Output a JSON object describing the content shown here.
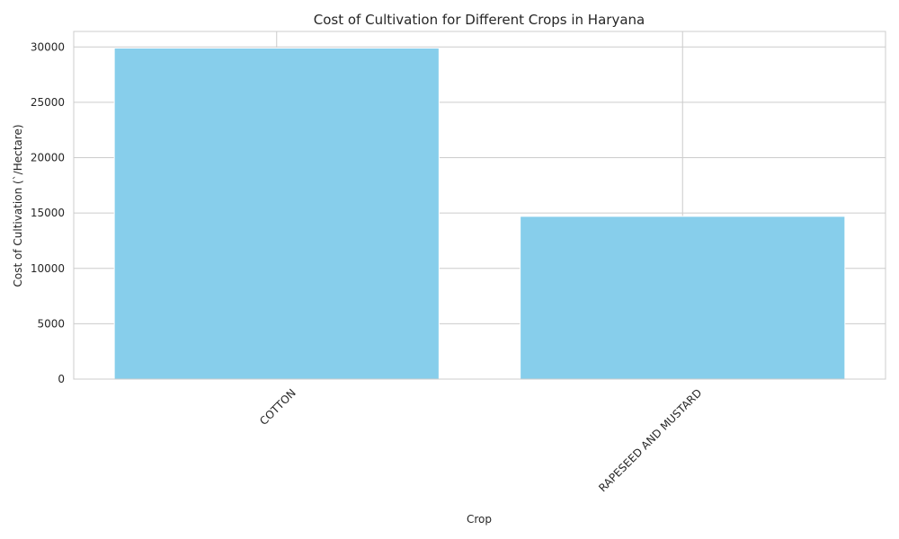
{
  "chart_data": {
    "type": "bar",
    "title": "Cost of Cultivation for Different Crops in Haryana",
    "xlabel": "Crop",
    "ylabel": "Cost of Cultivation (`/Hectare)",
    "categories": [
      "COTTON",
      "RAPESEED AND MUSTARD"
    ],
    "values": [
      29900,
      14700
    ],
    "ylim": [
      0,
      31400
    ],
    "yticks": [
      0,
      5000,
      10000,
      15000,
      20000,
      25000,
      30000
    ],
    "grid": true,
    "legend": "none",
    "bar_color": "#87ceeb",
    "x_tick_rotation": -45
  }
}
